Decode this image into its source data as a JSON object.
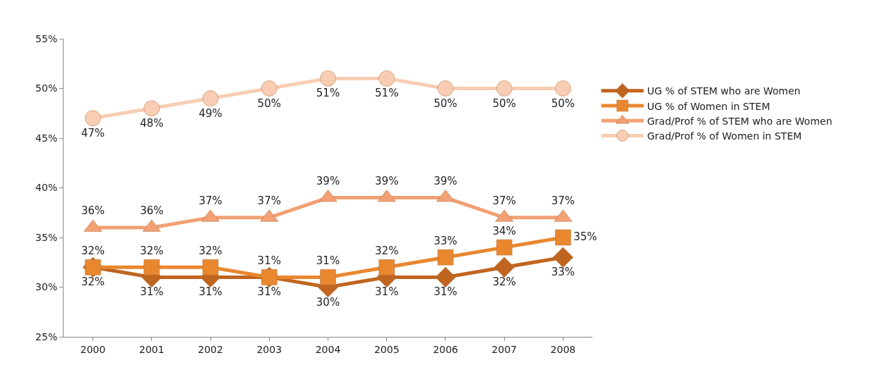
{
  "chart_data": {
    "type": "line",
    "categories": [
      "2000",
      "2001",
      "2002",
      "2003",
      "2004",
      "2005",
      "2006",
      "2007",
      "2008"
    ],
    "ylim": [
      25,
      55
    ],
    "yticks": [
      {
        "value": 25,
        "label": "25%"
      },
      {
        "value": 30,
        "label": "30%"
      },
      {
        "value": 35,
        "label": "35%"
      },
      {
        "value": 40,
        "label": "40%"
      },
      {
        "value": 45,
        "label": "45%"
      },
      {
        "value": 50,
        "label": "50%"
      },
      {
        "value": 55,
        "label": "55%"
      }
    ],
    "grid": false,
    "legend": "right",
    "series": [
      {
        "name": "UG % of STEM who are Women",
        "color": "#c0651f",
        "marker": "diamond",
        "values": [
          32,
          31,
          31,
          31,
          30,
          31,
          31,
          32,
          33
        ],
        "value_labels": [
          "32%",
          "31%",
          "31%",
          "31%",
          "30%",
          "31%",
          "31%",
          "32%",
          "33%"
        ]
      },
      {
        "name": "UG % of Women in STEM",
        "color": "#e9872f",
        "marker": "square",
        "values": [
          32,
          32,
          32,
          31,
          31,
          32,
          33,
          34,
          35
        ],
        "value_labels": [
          "32%",
          "32%",
          "32%",
          "31%",
          "31%",
          "32%",
          "33%",
          "34%",
          "35%"
        ]
      },
      {
        "name": "Grad/Prof % of STEM who are Women",
        "color": "#f2a074",
        "marker": "triangle",
        "values": [
          36,
          36,
          37,
          37,
          39,
          39,
          39,
          37,
          37
        ],
        "value_labels": [
          "36%",
          "36%",
          "37%",
          "37%",
          "39%",
          "39%",
          "39%",
          "37%",
          "37%"
        ]
      },
      {
        "name": "Grad/Prof % of Women in STEM",
        "color": "#f8cdb3",
        "marker": "circle",
        "values": [
          47,
          48,
          49,
          50,
          51,
          51,
          50,
          50,
          50
        ],
        "value_labels": [
          "47%",
          "48%",
          "49%",
          "50%",
          "51%",
          "51%",
          "50%",
          "50%",
          "50%"
        ]
      }
    ]
  }
}
